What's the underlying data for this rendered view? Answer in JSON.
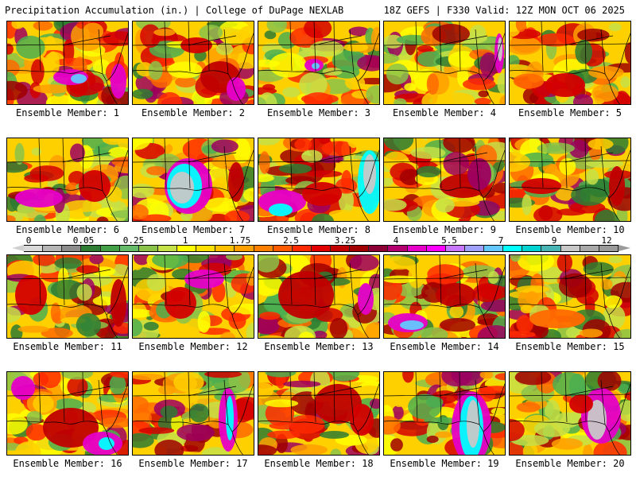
{
  "header": {
    "left": "Precipitation Accumulation (in.) | College of DuPage NEXLAB",
    "right": "18Z GEFS | F330 Valid: 12Z MON OCT 06 2025"
  },
  "colorbar": {
    "tick_labels": [
      "0",
      "0.05",
      "0.25",
      "1",
      "1.75",
      "2.5",
      "3.25",
      "4",
      "5.5",
      "7",
      "9",
      "12"
    ],
    "colors": [
      "#d9d9d9",
      "#b5b5b5",
      "#8c8c8c",
      "#2e7d32",
      "#43a047",
      "#66bb6a",
      "#8bc34a",
      "#c6e048",
      "#ffff00",
      "#ffe000",
      "#ffc000",
      "#ffa000",
      "#ff7f00",
      "#ff5a00",
      "#ff2a00",
      "#e00000",
      "#c00000",
      "#a00000",
      "#8c0036",
      "#b4006e",
      "#e600c8",
      "#ff00ff",
      "#c878ff",
      "#a0a0ff",
      "#64c8ff",
      "#00ffff",
      "#00d2d2",
      "#48b4b4",
      "#c8c8c8",
      "#a8a8a8",
      "#9a9a9a"
    ]
  },
  "panels": [
    {
      "label": "Ensemble Member: 1"
    },
    {
      "label": "Ensemble Member: 2"
    },
    {
      "label": "Ensemble Member: 3"
    },
    {
      "label": "Ensemble Member: 4"
    },
    {
      "label": "Ensemble Member: 5"
    },
    {
      "label": "Ensemble Member: 6"
    },
    {
      "label": "Ensemble Member: 7"
    },
    {
      "label": "Ensemble Member: 8"
    },
    {
      "label": "Ensemble Member: 9"
    },
    {
      "label": "Ensemble Member: 10"
    },
    {
      "label": "Ensemble Member: 11"
    },
    {
      "label": "Ensemble Member: 12"
    },
    {
      "label": "Ensemble Member: 13"
    },
    {
      "label": "Ensemble Member: 14"
    },
    {
      "label": "Ensemble Member: 15"
    },
    {
      "label": "Ensemble Member: 16"
    },
    {
      "label": "Ensemble Member: 17"
    },
    {
      "label": "Ensemble Member: 18"
    },
    {
      "label": "Ensemble Member: 19"
    },
    {
      "label": "Ensemble Member: 20"
    }
  ]
}
